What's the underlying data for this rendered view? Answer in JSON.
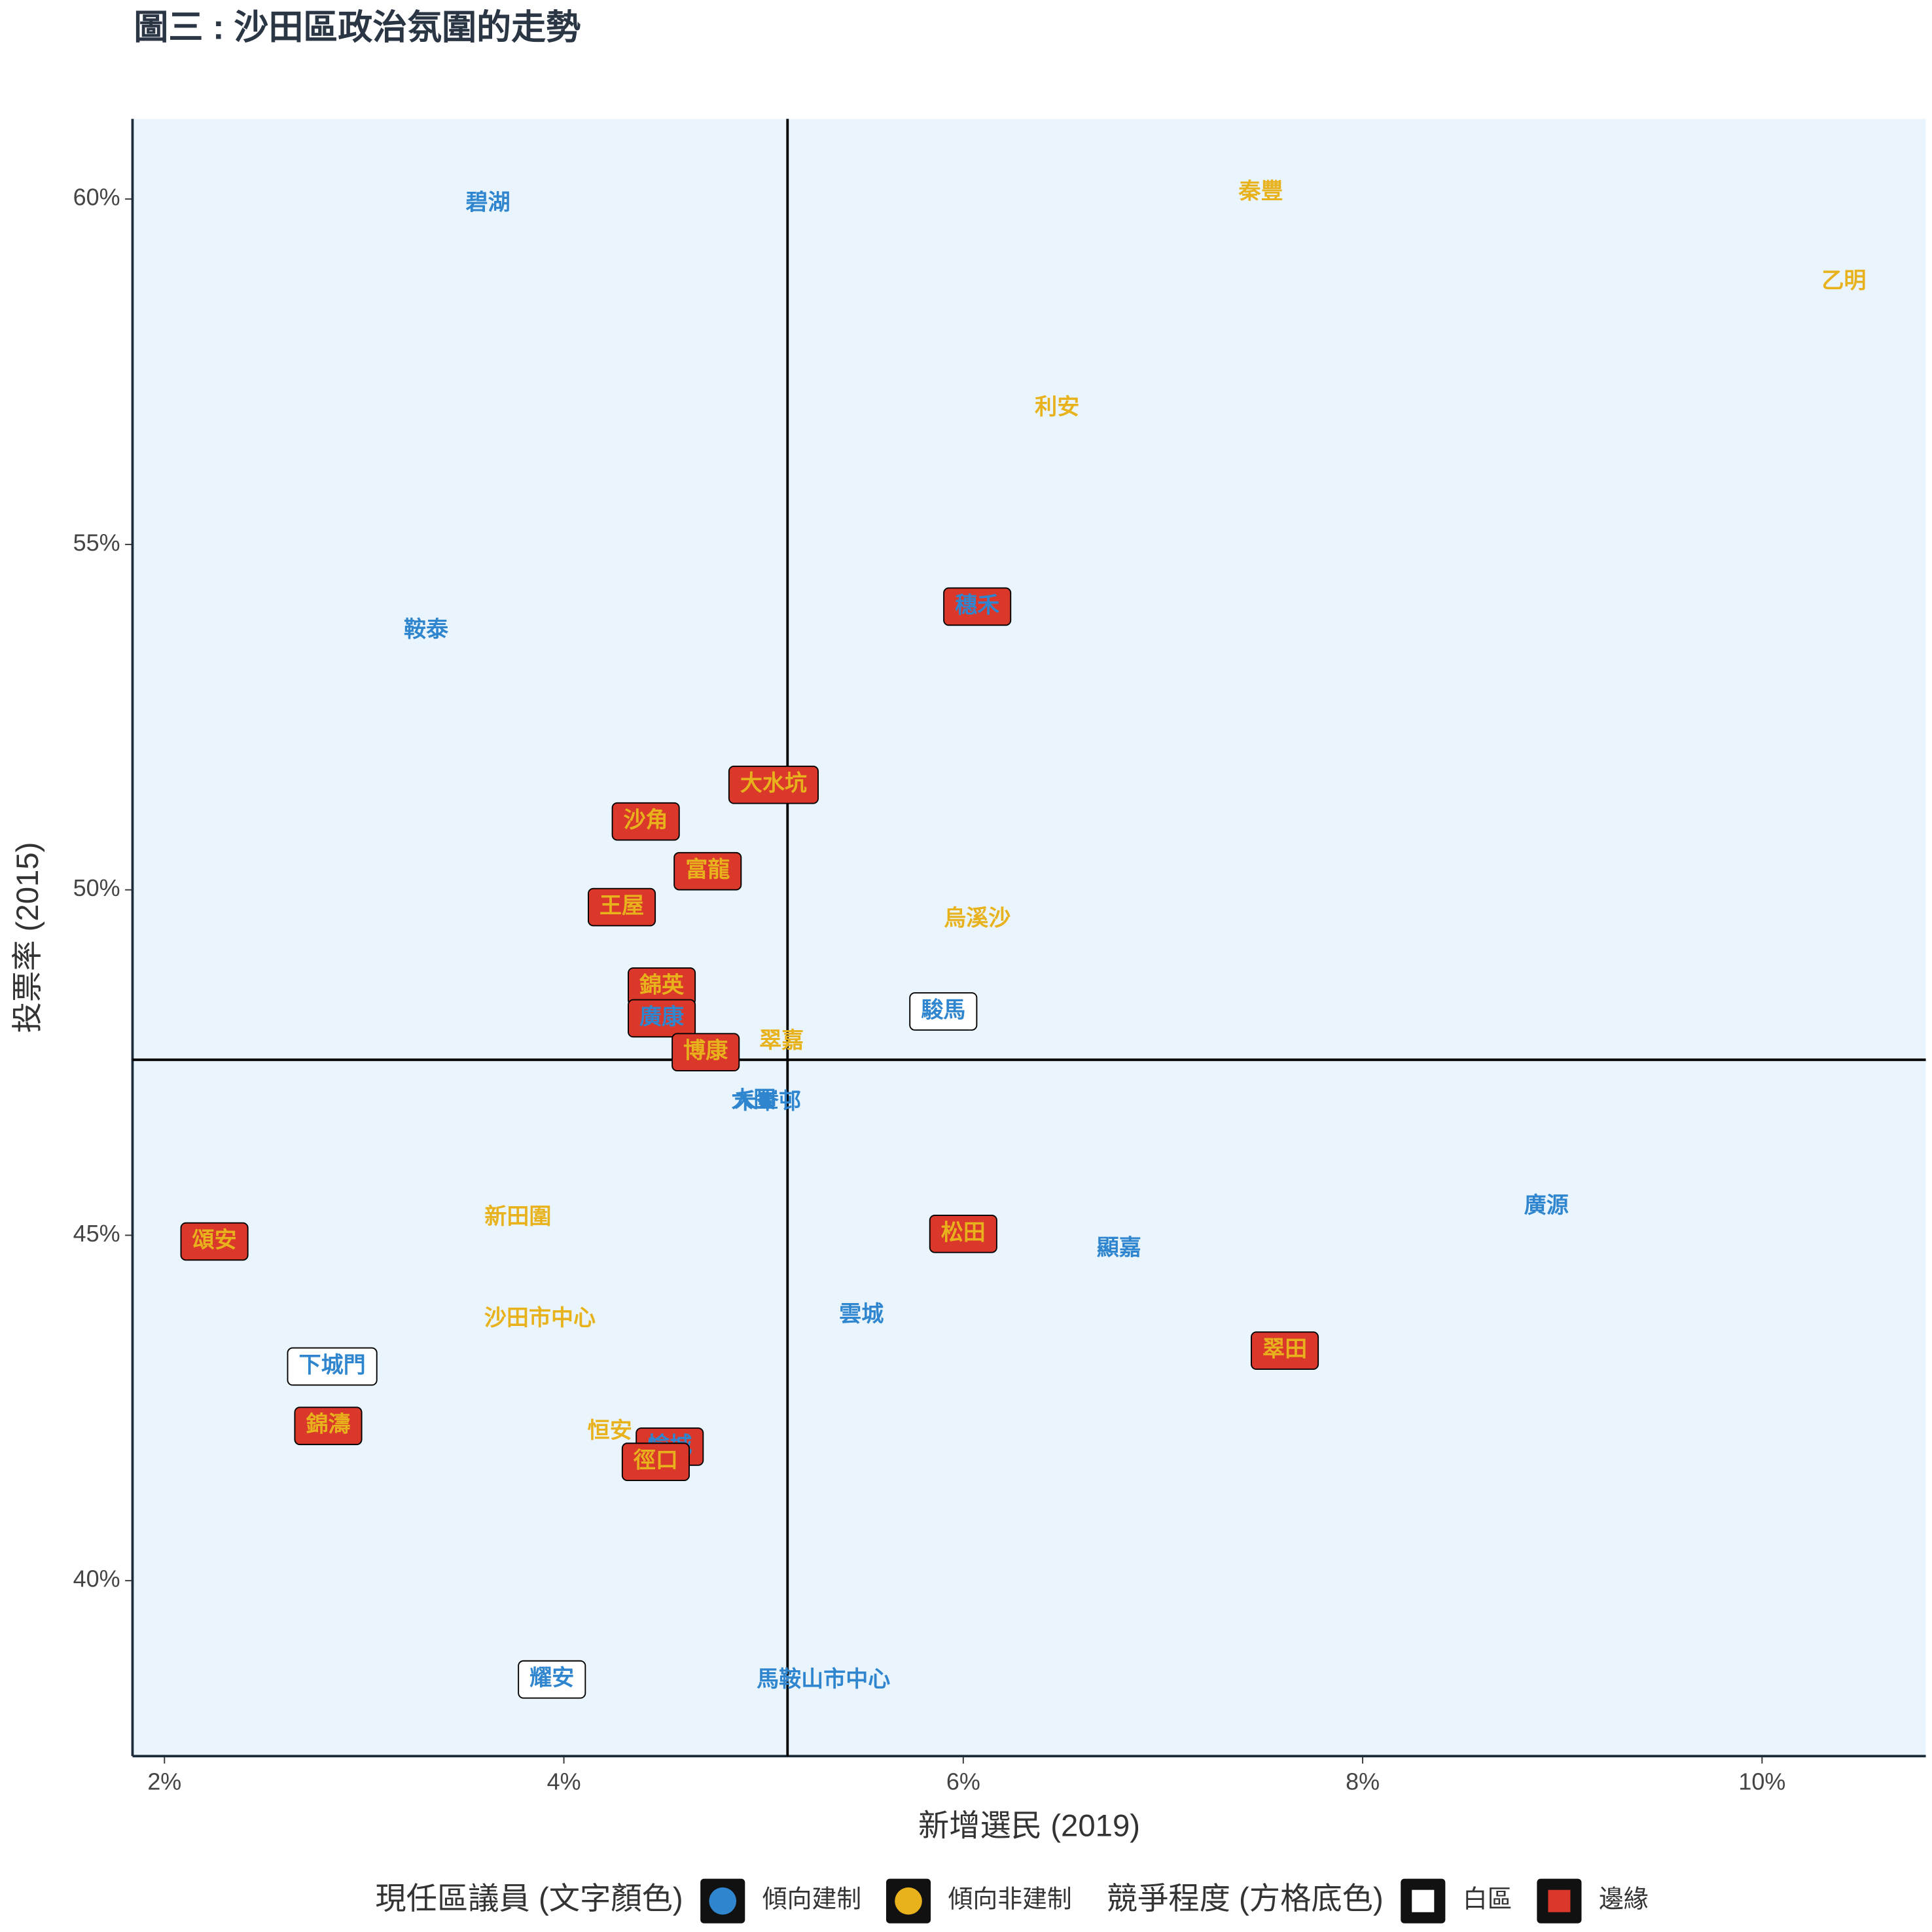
{
  "chart_data": {
    "type": "scatter",
    "title": "圖三 : 沙田區政治氛圍的走勢",
    "x_label": "新增選民 (2019)",
    "y_label": "投票率 (2015)",
    "xlim": [
      1.84,
      10.82
    ],
    "ylim": [
      37.46,
      61.16
    ],
    "xticks": [
      {
        "value": 2,
        "label": "2%"
      },
      {
        "value": 4,
        "label": "4%"
      },
      {
        "value": 6,
        "label": "6%"
      },
      {
        "value": 8,
        "label": "8%"
      },
      {
        "value": 10,
        "label": "10%"
      }
    ],
    "yticks": [
      {
        "value": 40,
        "label": "40%"
      },
      {
        "value": 45,
        "label": "45%"
      },
      {
        "value": 50,
        "label": "50%"
      },
      {
        "value": 55,
        "label": "55%"
      },
      {
        "value": 60,
        "label": "60%"
      }
    ],
    "vline": 5.12,
    "hline": 47.54,
    "background": "#eaf4fc",
    "legends": [
      {
        "title": "現任區議員 (文字顏色)",
        "shape": "circle",
        "entries": [
          {
            "name": "傾向建制",
            "color": "#2f86cf"
          },
          {
            "name": "傾向非建制",
            "color": "#e8b21c"
          }
        ]
      },
      {
        "title": "競爭程度 (方格底色)",
        "shape": "square",
        "entries": [
          {
            "name": "白區",
            "color": "#ffffff"
          },
          {
            "name": "邊緣",
            "color": "#d9382a"
          }
        ]
      }
    ],
    "points": [
      {
        "label": "碧湖",
        "x": 3.62,
        "y": 59.93,
        "text": 0,
        "box": null
      },
      {
        "label": "秦豐",
        "x": 7.49,
        "y": 60.09,
        "text": 1,
        "box": null
      },
      {
        "label": "乙明",
        "x": 10.41,
        "y": 58.8,
        "text": 1,
        "box": null
      },
      {
        "label": "利安",
        "x": 6.47,
        "y": 56.97,
        "text": 1,
        "box": null
      },
      {
        "label": "穗禾",
        "x": 6.07,
        "y": 54.1,
        "text": 0,
        "box": 1
      },
      {
        "label": "鞍泰",
        "x": 3.31,
        "y": 53.75,
        "text": 0,
        "box": null
      },
      {
        "label": "大水坑",
        "x": 5.05,
        "y": 51.52,
        "text": 1,
        "box": 1
      },
      {
        "label": "沙角",
        "x": 4.41,
        "y": 50.99,
        "text": 1,
        "box": 1
      },
      {
        "label": "富龍",
        "x": 4.72,
        "y": 50.27,
        "text": 1,
        "box": 1
      },
      {
        "label": "王屋",
        "x": 4.29,
        "y": 49.75,
        "text": 1,
        "box": 1
      },
      {
        "label": "烏溪沙",
        "x": 6.07,
        "y": 49.57,
        "text": 1,
        "box": null
      },
      {
        "label": "錦英",
        "x": 4.49,
        "y": 48.6,
        "text": 1,
        "box": 1
      },
      {
        "label": "駿馬",
        "x": 5.9,
        "y": 48.24,
        "text": 0,
        "box": 0
      },
      {
        "label": "廣康",
        "x": 4.49,
        "y": 48.14,
        "text": 0,
        "box": 1
      },
      {
        "label": "翠嘉",
        "x": 5.09,
        "y": 47.8,
        "text": 1,
        "box": null
      },
      {
        "label": "博康",
        "x": 4.71,
        "y": 47.65,
        "text": 1,
        "box": 1
      },
      {
        "label": "大圍",
        "x": 4.95,
        "y": 46.94,
        "text": 0,
        "box": null
      },
      {
        "label": "禾輋邨",
        "x": 5.02,
        "y": 46.92,
        "text": 0,
        "box": null
      },
      {
        "label": "廣源",
        "x": 8.92,
        "y": 45.41,
        "text": 0,
        "box": null
      },
      {
        "label": "新田圍",
        "x": 3.77,
        "y": 45.25,
        "text": 1,
        "box": null
      },
      {
        "label": "頌安",
        "x": 2.25,
        "y": 44.91,
        "text": 1,
        "box": 1
      },
      {
        "label": "松田",
        "x": 6.0,
        "y": 45.02,
        "text": 1,
        "box": 1
      },
      {
        "label": "顯嘉",
        "x": 6.78,
        "y": 44.8,
        "text": 0,
        "box": null
      },
      {
        "label": "雲城",
        "x": 5.49,
        "y": 43.84,
        "text": 0,
        "box": null
      },
      {
        "label": "沙田市中心",
        "x": 3.88,
        "y": 43.78,
        "text": 1,
        "box": null
      },
      {
        "label": "翠田",
        "x": 7.61,
        "y": 43.33,
        "text": 1,
        "box": 1
      },
      {
        "label": "下城門",
        "x": 2.84,
        "y": 43.1,
        "text": 0,
        "box": 0
      },
      {
        "label": "錦濤",
        "x": 2.82,
        "y": 42.24,
        "text": 1,
        "box": 1
      },
      {
        "label": "恒安",
        "x": 4.23,
        "y": 42.15,
        "text": 1,
        "box": null
      },
      {
        "label": "愉城",
        "x": 4.53,
        "y": 41.94,
        "text": 0,
        "box": 1
      },
      {
        "label": "徑口",
        "x": 4.46,
        "y": 41.72,
        "text": 1,
        "box": 1
      },
      {
        "label": "耀安",
        "x": 3.94,
        "y": 38.57,
        "text": 0,
        "box": 0
      },
      {
        "label": "馬鞍山市中心",
        "x": 5.3,
        "y": 38.55,
        "text": 0,
        "box": null
      }
    ]
  }
}
